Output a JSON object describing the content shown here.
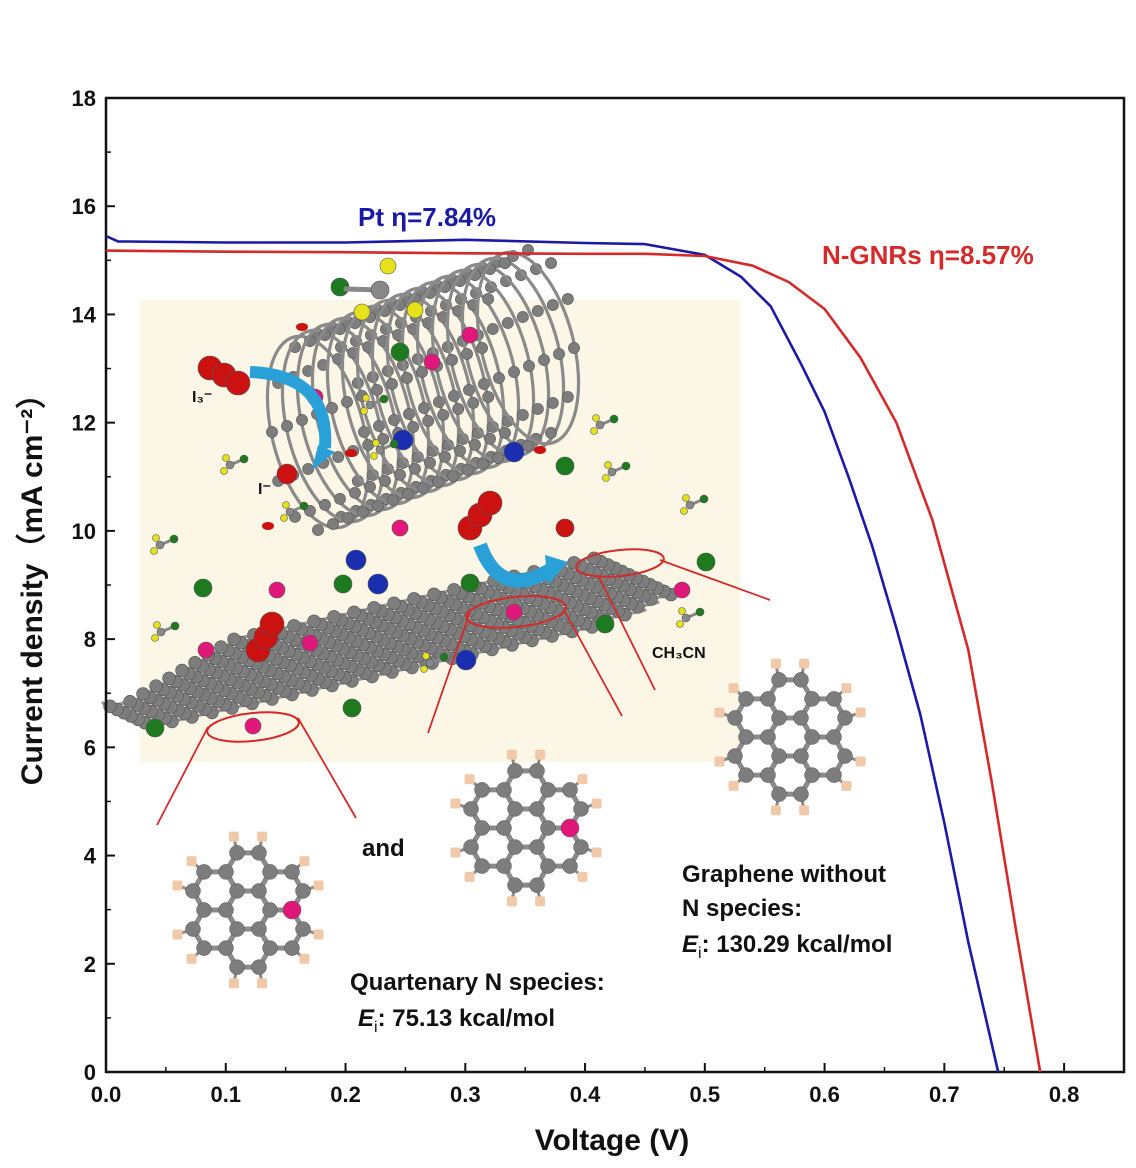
{
  "chart_data": {
    "type": "line",
    "xlabel": "Voltage (V)",
    "ylabel": "Current density（mA cm⁻²）",
    "xlim": [
      0.0,
      0.85
    ],
    "ylim": [
      0,
      18
    ],
    "xticks": [
      "0.0",
      "0.1",
      "0.2",
      "0.3",
      "0.4",
      "0.5",
      "0.6",
      "0.7",
      "0.8"
    ],
    "yticks": [
      "0",
      "2",
      "4",
      "6",
      "8",
      "10",
      "12",
      "14",
      "16",
      "18"
    ],
    "series": [
      {
        "name": "Pt η=7.84%",
        "color": "#1a1aa6",
        "x": [
          0.0,
          0.01,
          0.1,
          0.2,
          0.3,
          0.4,
          0.45,
          0.5,
          0.53,
          0.555,
          0.58,
          0.6,
          0.62,
          0.64,
          0.66,
          0.68,
          0.7,
          0.72,
          0.745
        ],
        "y": [
          15.45,
          15.35,
          15.33,
          15.33,
          15.38,
          15.32,
          15.3,
          15.1,
          14.7,
          14.15,
          13.1,
          12.2,
          11.0,
          9.7,
          8.2,
          6.6,
          4.6,
          2.4,
          0.0
        ]
      },
      {
        "name": "N-GNRs η=8.57%",
        "color": "#d42a2a",
        "x": [
          0.0,
          0.1,
          0.2,
          0.3,
          0.4,
          0.45,
          0.5,
          0.54,
          0.57,
          0.6,
          0.63,
          0.66,
          0.69,
          0.72,
          0.74,
          0.76,
          0.78
        ],
        "y": [
          15.18,
          15.16,
          15.15,
          15.13,
          15.12,
          15.12,
          15.08,
          14.9,
          14.6,
          14.1,
          13.2,
          12.0,
          10.2,
          7.8,
          5.3,
          2.6,
          0.0
        ]
      }
    ],
    "legend": "inline labels near curves"
  },
  "annotations": {
    "triiodide": "I₃⁻",
    "iodide": "I⁻",
    "solvent": "CH₃CN",
    "and": "and",
    "quaternary_title": "Quartenary N species:",
    "quaternary_energy_label": "E",
    "quaternary_energy_sub": "i",
    "quaternary_energy_value": ": 75.13 kcal/mol",
    "graphene_title_1": "Graphene without",
    "graphene_title_2": "N species:",
    "graphene_energy_label": "E",
    "graphene_energy_sub": "i",
    "graphene_energy_value": ": 130.29 kcal/mol"
  },
  "colors": {
    "carbon": "#7d7d7d",
    "nitrogen_quaternary": "#e0187a",
    "nitrogen_pyridinic": "#1a2fb0",
    "chlorine_green": "#1e7a1e",
    "iodine_red": "#cc1111",
    "hydrogen": "#f2c9a8",
    "arrow": "#2aa0d8",
    "highlight": "#d42a2a",
    "panel_bg": "#fbf6e6"
  }
}
